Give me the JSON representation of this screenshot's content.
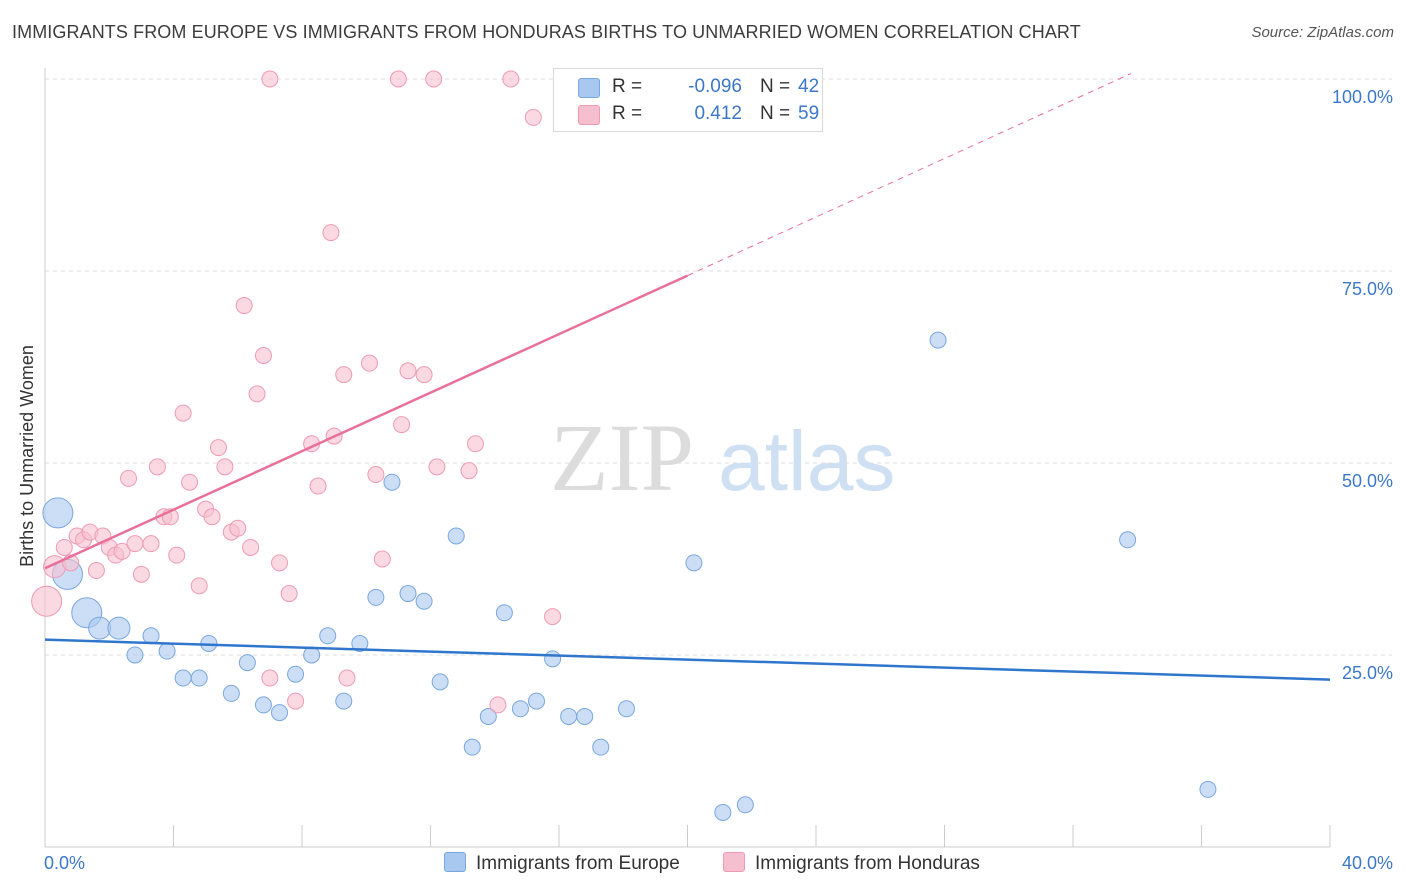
{
  "title": "IMMIGRANTS FROM EUROPE VS IMMIGRANTS FROM HONDURAS BIRTHS TO UNMARRIED WOMEN CORRELATION CHART",
  "source": "Source: ZipAtlas.com",
  "watermark": {
    "zip": "ZIP",
    "atlas": "atlas"
  },
  "legend": {
    "europe": {
      "r_label": "R =",
      "r_value": "-0.096",
      "n_label": "N =",
      "n_value": "42"
    },
    "honduras": {
      "r_label": "R =",
      "r_value": "0.412",
      "n_label": "N =",
      "n_value": "59"
    }
  },
  "bottom_legend": {
    "europe": "Immigrants from Europe",
    "honduras": "Immigrants from Honduras"
  },
  "colors": {
    "europe_fill": "#a8c8f0",
    "europe_stroke": "#7aa7df",
    "europe_line": "#2f76cc",
    "honduras_fill": "#f6bfcf",
    "honduras_stroke": "#ee9ab5",
    "honduras_line": "#e8709a",
    "tick_label": "#3c78c8",
    "grid": "#dddddd"
  },
  "chart_data": {
    "type": "scatter",
    "title": "IMMIGRANTS FROM EUROPE VS IMMIGRANTS FROM HONDURAS BIRTHS TO UNMARRIED WOMEN CORRELATION CHART",
    "xlabel": "",
    "ylabel": "Births to Unmarried Women",
    "xlim": [
      0,
      40
    ],
    "ylim": [
      0,
      100
    ],
    "x_tick_labels": [
      "0.0%",
      "40.0%"
    ],
    "y_ticks": [
      25,
      50,
      75,
      100
    ],
    "y_tick_labels": [
      "25.0%",
      "50.0%",
      "75.0%",
      "100.0%"
    ],
    "grid": true,
    "legend_position": "top-center",
    "series": [
      {
        "name": "Immigrants from Europe",
        "points": [
          [
            0.4,
            43.5,
            3
          ],
          [
            0.7,
            35.5,
            3
          ],
          [
            1.3,
            30.5,
            3
          ],
          [
            1.7,
            28.5,
            2
          ],
          [
            2.3,
            28.5,
            2
          ],
          [
            2.8,
            25,
            1
          ],
          [
            3.3,
            27.5,
            1
          ],
          [
            3.8,
            25.5,
            1
          ],
          [
            4.3,
            22,
            1
          ],
          [
            4.8,
            22,
            1
          ],
          [
            5.1,
            26.5,
            1
          ],
          [
            5.8,
            20,
            1
          ],
          [
            6.3,
            24,
            1
          ],
          [
            6.8,
            18.5,
            1
          ],
          [
            7.3,
            17.5,
            1
          ],
          [
            7.8,
            22.5,
            1
          ],
          [
            8.3,
            25,
            1
          ],
          [
            8.8,
            27.5,
            1
          ],
          [
            9.3,
            19,
            1
          ],
          [
            9.8,
            26.5,
            1
          ],
          [
            10.3,
            32.5,
            1
          ],
          [
            10.8,
            47.5,
            1
          ],
          [
            11.3,
            33,
            1
          ],
          [
            11.8,
            32,
            1
          ],
          [
            12.3,
            21.5,
            1
          ],
          [
            12.8,
            40.5,
            1
          ],
          [
            13.3,
            13,
            1
          ],
          [
            13.8,
            17,
            1
          ],
          [
            14.3,
            30.5,
            1
          ],
          [
            14.8,
            18,
            1
          ],
          [
            15.3,
            19,
            1
          ],
          [
            15.8,
            24.5,
            1
          ],
          [
            16.3,
            17,
            1
          ],
          [
            16.8,
            17,
            1
          ],
          [
            17.3,
            13,
            1
          ],
          [
            18.1,
            18,
            1
          ],
          [
            20.2,
            37,
            1
          ],
          [
            21.1,
            4.5,
            1
          ],
          [
            21.8,
            5.5,
            1
          ],
          [
            27.8,
            66,
            1
          ],
          [
            33.7,
            40,
            1
          ],
          [
            36.2,
            7.5,
            1
          ]
        ]
      },
      {
        "name": "Immigrants from Honduras",
        "points": [
          [
            0.05,
            32,
            3
          ],
          [
            0.3,
            36.5,
            2
          ],
          [
            0.6,
            39,
            1
          ],
          [
            0.8,
            37,
            1
          ],
          [
            1.0,
            40.5,
            1
          ],
          [
            1.2,
            40,
            1
          ],
          [
            1.4,
            41,
            1
          ],
          [
            1.6,
            36,
            1
          ],
          [
            1.8,
            40.5,
            1
          ],
          [
            2.0,
            39,
            1
          ],
          [
            2.2,
            38,
            1
          ],
          [
            2.4,
            38.5,
            1
          ],
          [
            2.6,
            48,
            1
          ],
          [
            2.8,
            39.5,
            1
          ],
          [
            3.0,
            35.5,
            1
          ],
          [
            3.3,
            39.5,
            1
          ],
          [
            3.5,
            49.5,
            1
          ],
          [
            3.7,
            43,
            1
          ],
          [
            3.9,
            43,
            1
          ],
          [
            4.1,
            38,
            1
          ],
          [
            4.3,
            56.5,
            1
          ],
          [
            4.5,
            47.5,
            1
          ],
          [
            4.8,
            34,
            1
          ],
          [
            5.0,
            44,
            1
          ],
          [
            5.2,
            43,
            1
          ],
          [
            5.4,
            52,
            1
          ],
          [
            5.6,
            49.5,
            1
          ],
          [
            5.8,
            41,
            1
          ],
          [
            6.0,
            41.5,
            1
          ],
          [
            6.2,
            70.5,
            1
          ],
          [
            6.4,
            39,
            1
          ],
          [
            6.6,
            59,
            1
          ],
          [
            6.8,
            64,
            1
          ],
          [
            7.0,
            22,
            1
          ],
          [
            7.3,
            37,
            1
          ],
          [
            7.6,
            33,
            1
          ],
          [
            7.8,
            19,
            1
          ],
          [
            8.3,
            52.5,
            1
          ],
          [
            8.5,
            47,
            1
          ],
          [
            8.9,
            80,
            1
          ],
          [
            9.0,
            53.5,
            1
          ],
          [
            9.3,
            61.5,
            1
          ],
          [
            9.4,
            22,
            1
          ],
          [
            10.1,
            63,
            1
          ],
          [
            10.3,
            48.5,
            1
          ],
          [
            10.5,
            37.5,
            1
          ],
          [
            11.1,
            55,
            1
          ],
          [
            11.3,
            62,
            1
          ],
          [
            11.8,
            61.5,
            1
          ],
          [
            12.2,
            49.5,
            1
          ],
          [
            13.2,
            49,
            1
          ],
          [
            13.4,
            52.5,
            1
          ],
          [
            14.1,
            18.5,
            1
          ],
          [
            15.8,
            30,
            1
          ],
          [
            7.0,
            100,
            1
          ],
          [
            11.0,
            100,
            1
          ],
          [
            12.1,
            100,
            1
          ],
          [
            14.5,
            100,
            1
          ],
          [
            15.2,
            95,
            1
          ]
        ]
      }
    ],
    "trend_lines": [
      {
        "series": "Immigrants from Europe",
        "x": [
          0,
          40
        ],
        "y": [
          27,
          21.8
        ],
        "style": "solid"
      },
      {
        "series": "Immigrants from Honduras",
        "x": [
          0,
          20
        ],
        "y": [
          36.3,
          74.4
        ],
        "style": "solid"
      },
      {
        "series": "Immigrants from Honduras",
        "x": [
          20,
          33.8
        ],
        "y": [
          74.4,
          100.7
        ],
        "style": "dashed"
      }
    ]
  }
}
